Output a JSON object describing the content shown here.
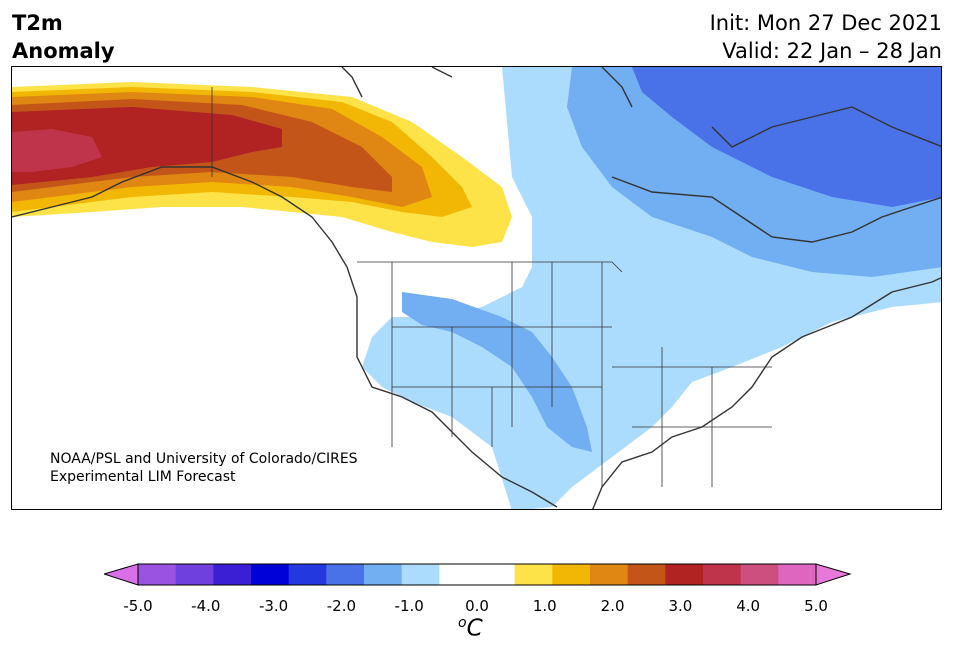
{
  "title": {
    "line1": "T2m",
    "line2": "Anomaly"
  },
  "dates": {
    "init": "Init: Mon 27 Dec 2021",
    "valid": "Valid: 22 Jan – 28 Jan"
  },
  "credit": {
    "line1": "NOAA/PSL and University of Colorado/CIRES",
    "line2": "Experimental LIM Forecast"
  },
  "colorbar": {
    "unit_sup": "o",
    "unit": "C",
    "ticks": [
      "-5.0",
      "-4.0",
      "-3.0",
      "-2.0",
      "-1.0",
      "0.0",
      "1.0",
      "2.0",
      "3.0",
      "4.0",
      "5.0"
    ],
    "colors": [
      "#9a52e0",
      "#7040df",
      "#3a1fd4",
      "#0000d8",
      "#2438e0",
      "#4a72e8",
      "#72aef2",
      "#acdcfd",
      "#ffffff",
      "#ffffff",
      "#fee348",
      "#f2b705",
      "#e08612",
      "#c45519",
      "#b12222",
      "#c0344b",
      "#cc4f7f",
      "#de66bf"
    ],
    "under_color": "#d870e8",
    "over_color": "#e878d8",
    "colors_anomaly": {
      "warm1": "#fee348",
      "warm2": "#f2b705",
      "warm3": "#e08612",
      "warm4": "#c45519",
      "warm5": "#b12222",
      "warm6": "#c0344b",
      "cool1": "#acdcfd",
      "cool2": "#72aef2",
      "cool3": "#4a72e8"
    }
  }
}
